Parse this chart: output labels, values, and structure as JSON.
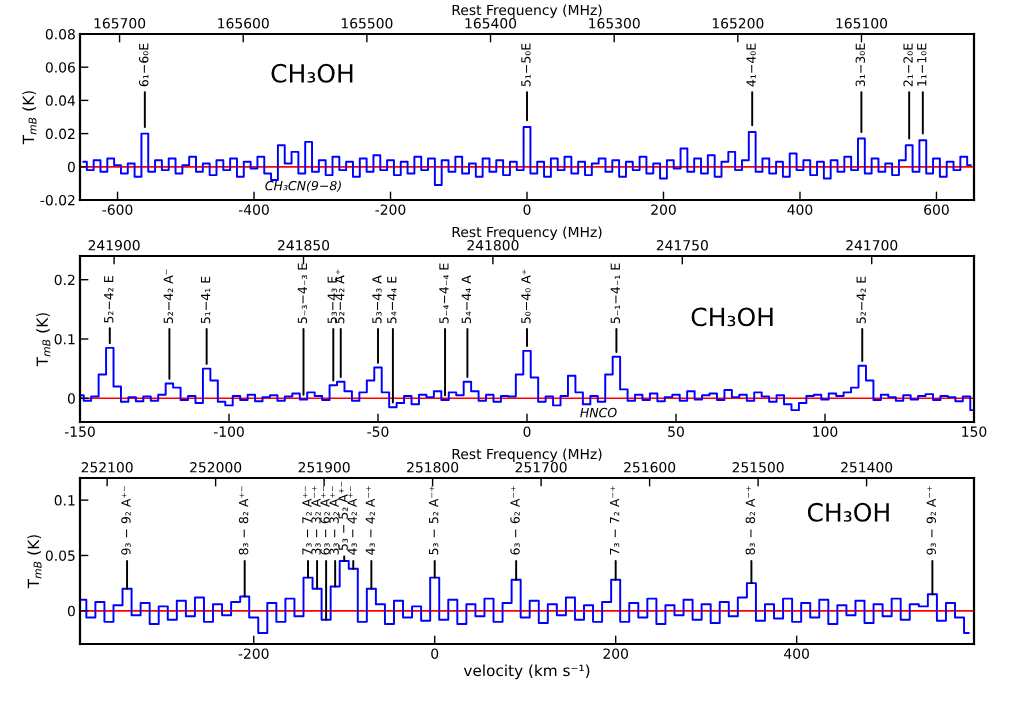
{
  "chart_data": [
    {
      "type": "step",
      "title": "CH₃OH",
      "ylabel": "T$_{mB}$ (K)",
      "x2label": "Rest Frequency (MHz)",
      "x": [
        -650,
        -640,
        -630,
        -620,
        -610,
        -600,
        -590,
        -580,
        -570,
        -560,
        -550,
        -540,
        -530,
        -520,
        -510,
        -500,
        -490,
        -480,
        -470,
        -460,
        -450,
        -440,
        -430,
        -420,
        -410,
        -400,
        -390,
        -380,
        -370,
        -360,
        -350,
        -340,
        -330,
        -320,
        -310,
        -300,
        -290,
        -280,
        -270,
        -260,
        -250,
        -240,
        -230,
        -220,
        -210,
        -200,
        -190,
        -180,
        -170,
        -160,
        -150,
        -140,
        -130,
        -120,
        -110,
        -100,
        -90,
        -80,
        -70,
        -60,
        -50,
        -40,
        -30,
        -20,
        -10,
        0,
        10,
        20,
        30,
        40,
        50,
        60,
        70,
        80,
        90,
        100,
        110,
        120,
        130,
        140,
        150,
        160,
        170,
        180,
        190,
        200,
        210,
        220,
        230,
        240,
        250,
        260,
        270,
        280,
        290,
        300,
        310,
        320,
        330,
        340,
        350,
        360,
        370,
        380,
        390,
        400,
        410,
        420,
        430,
        440,
        450,
        460,
        470,
        480,
        490,
        500,
        510,
        520,
        530,
        540,
        550,
        560,
        570,
        580,
        590,
        600,
        610,
        620,
        630,
        640,
        650
      ],
      "series": [
        {
          "color": "#0000ff",
          "values": [
            0.003,
            -0.002,
            0.004,
            -0.003,
            0.005,
            0.001,
            -0.004,
            0.002,
            -0.006,
            0.02,
            -0.003,
            0.004,
            -0.002,
            0.005,
            -0.004,
            0.001,
            0.006,
            -0.003,
            0.002,
            -0.005,
            0.004,
            -0.002,
            0.005,
            -0.006,
            0.003,
            -0.001,
            0.006,
            -0.004,
            -0.008,
            0.013,
            0.002,
            0.009,
            -0.004,
            0.015,
            -0.003,
            0.004,
            -0.005,
            0.006,
            -0.002,
            0.003,
            -0.006,
            0.005,
            -0.003,
            0.007,
            -0.002,
            0.004,
            -0.005,
            0.003,
            -0.004,
            0.006,
            -0.002,
            0.005,
            -0.011,
            0.004,
            -0.003,
            0.006,
            -0.004,
            0.002,
            -0.006,
            0.005,
            -0.003,
            0.004,
            -0.005,
            0.003,
            -0.002,
            0.024,
            -0.004,
            0.003,
            -0.006,
            0.005,
            -0.002,
            0.006,
            -0.004,
            0.003,
            -0.005,
            0.002,
            0.005,
            -0.003,
            0.004,
            -0.006,
            0.003,
            -0.002,
            0.006,
            -0.004,
            0.002,
            -0.007,
            0.004,
            -0.001,
            0.011,
            -0.003,
            0.005,
            -0.004,
            0.007,
            -0.006,
            0.003,
            0.009,
            -0.002,
            0.004,
            0.021,
            -0.003,
            0.005,
            -0.004,
            0.003,
            -0.006,
            0.008,
            -0.002,
            0.004,
            -0.005,
            0.003,
            -0.007,
            0.004,
            -0.003,
            0.006,
            -0.002,
            0.017,
            -0.004,
            0.005,
            -0.003,
            0.002,
            -0.005,
            0.004,
            0.013,
            -0.003,
            0.016,
            -0.004,
            0.005,
            -0.006,
            0.003,
            -0.002,
            0.006,
            0.001
          ]
        }
      ],
      "xlim": [
        -655,
        655
      ],
      "xticks": [
        -600,
        -400,
        -200,
        0,
        200,
        400,
        600
      ],
      "ylim": [
        -0.02,
        0.08
      ],
      "yticks": [
        -0.02,
        0,
        0.02,
        0.04,
        0.06,
        0.08
      ],
      "x2lim": [
        165732,
        165009
      ],
      "x2ticks": [
        165700,
        165600,
        165500,
        165400,
        165300,
        165200,
        165100
      ],
      "ref_lines": [
        {
          "axis": "y",
          "value": 0,
          "color": "#ff0000"
        }
      ],
      "annotations": [
        {
          "text": "6₁−6₀E",
          "x": -560,
          "y": 0.02
        },
        {
          "text": "5₁−5₀E",
          "x": 0,
          "y": 0.024
        },
        {
          "text": "4₁−4₀E",
          "x": 330,
          "y": 0.021
        },
        {
          "text": "3₁−3₀E",
          "x": 490,
          "y": 0.017
        },
        {
          "text": "2₁−2₀E",
          "x": 560,
          "y": 0.013
        },
        {
          "text": "1₁−1₀E",
          "x": 580,
          "y": 0.016
        },
        "CH₃CN(9−8)"
      ]
    },
    {
      "type": "step",
      "title": "CH₃OH",
      "ylabel": "T$_{mB}$ (K)",
      "x2label": "Rest Frequency (MHz)",
      "x": [
        -150,
        -147.5,
        -145,
        -142.5,
        -140,
        -137.5,
        -135,
        -132.5,
        -130,
        -127.5,
        -125,
        -122.5,
        -120,
        -117.5,
        -115,
        -112.5,
        -110,
        -107.5,
        -105,
        -102.5,
        -100,
        -97.5,
        -95,
        -92.5,
        -90,
        -87.5,
        -85,
        -82.5,
        -80,
        -77.5,
        -75,
        -72.5,
        -70,
        -67.5,
        -65,
        -62.5,
        -60,
        -57.5,
        -55,
        -52.5,
        -50,
        -47.5,
        -45,
        -42.5,
        -40,
        -37.5,
        -35,
        -32.5,
        -30,
        -27.5,
        -25,
        -22.5,
        -20,
        -17.5,
        -15,
        -12.5,
        -10,
        -7.5,
        -5,
        -2.5,
        0,
        2.5,
        5,
        7.5,
        10,
        12.5,
        15,
        17.5,
        20,
        22.5,
        25,
        27.5,
        30,
        32.5,
        35,
        37.5,
        40,
        42.5,
        45,
        47.5,
        50,
        52.5,
        55,
        57.5,
        60,
        62.5,
        65,
        67.5,
        70,
        72.5,
        75,
        77.5,
        80,
        82.5,
        85,
        87.5,
        90,
        92.5,
        95,
        97.5,
        100,
        102.5,
        105,
        107.5,
        110,
        112.5,
        115,
        117.5,
        120,
        122.5,
        125,
        127.5,
        130,
        132.5,
        135,
        137.5,
        140,
        142.5,
        145,
        147.5,
        150
      ],
      "series": [
        {
          "color": "#0000ff",
          "values": [
            0.005,
            -0.004,
            0.003,
            0.04,
            0.085,
            0.02,
            -0.006,
            0.002,
            -0.005,
            0.003,
            -0.004,
            0.006,
            0.025,
            0.018,
            -0.003,
            0.004,
            -0.008,
            0.05,
            0.03,
            -0.006,
            -0.012,
            0.004,
            -0.003,
            0.006,
            -0.005,
            0.002,
            0.005,
            -0.004,
            0.003,
            0.008,
            -0.002,
            0.01,
            0.004,
            -0.003,
            0.022,
            0.028,
            0.012,
            -0.004,
            0.01,
            0.03,
            0.052,
            0.01,
            -0.015,
            -0.008,
            0.004,
            -0.01,
            0.006,
            0.002,
            0.012,
            -0.003,
            0.01,
            0.005,
            0.028,
            0.012,
            -0.004,
            0.006,
            -0.006,
            0.004,
            0.003,
            0.04,
            0.08,
            0.035,
            -0.006,
            0.003,
            -0.012,
            0.004,
            0.038,
            0.01,
            -0.01,
            0.004,
            -0.006,
            0.04,
            0.07,
            0.015,
            -0.004,
            0.006,
            -0.003,
            0.008,
            -0.005,
            0.002,
            0.006,
            -0.004,
            0.012,
            -0.002,
            0.005,
            0.008,
            -0.003,
            0.014,
            0.002,
            0.006,
            -0.004,
            0.01,
            0.003,
            -0.006,
            0.005,
            -0.01,
            -0.02,
            -0.008,
            0.004,
            0.006,
            -0.002,
            0.008,
            0.004,
            0.01,
            0.018,
            0.055,
            0.03,
            -0.003,
            0.006,
            0.002,
            -0.004,
            0.005,
            -0.002,
            0.004,
            0.007,
            -0.003,
            0.004,
            0.002,
            -0.005,
            0.003,
            -0.02
          ]
        }
      ],
      "xlim": [
        -150,
        150
      ],
      "xticks": [
        -150,
        -100,
        -50,
        0,
        50,
        100,
        150
      ],
      "ylim": [
        -0.04,
        0.24
      ],
      "yticks": [
        0,
        0.1,
        0.2
      ],
      "x2lim": [
        241909,
        241673
      ],
      "x2ticks": [
        241900,
        241850,
        241800,
        241750,
        241700
      ],
      "ref_lines": [
        {
          "axis": "y",
          "value": 0,
          "color": "#ff0000"
        }
      ],
      "annotations": [
        {
          "text": "5₂−4₂ E",
          "x": -140,
          "y": 0.085
        },
        {
          "text": "5₂−4₂ A⁻",
          "x": -120,
          "y": 0.025
        },
        {
          "text": "5₁−4₁ E",
          "x": -107.5,
          "y": 0.05
        },
        {
          "text": "5₋₃−4₋₃ E",
          "x": -75,
          "y": -0.002
        },
        {
          "text": "5₃−4₃ E",
          "x": -65,
          "y": 0.022
        },
        {
          "text": "5₂−4₂ A⁺",
          "x": -62.5,
          "y": 0.028
        },
        {
          "text": "5₃−4₃ A",
          "x": -50,
          "y": 0.052
        },
        {
          "text": "5₄−4₄ E",
          "x": -45,
          "y": -0.015
        },
        {
          "text": "5₋₄−4₋₄ E",
          "x": -27.5,
          "y": -0.003
        },
        {
          "text": "5₄−4₄ A",
          "x": -20,
          "y": 0.028
        },
        {
          "text": "5₀−4₀ A⁺",
          "x": 0,
          "y": 0.08
        },
        {
          "text": "5₋₁−4₋₁ E",
          "x": 30,
          "y": 0.07
        },
        {
          "text": "5₂−4₂ E",
          "x": 112.5,
          "y": 0.055
        },
        "HNCO"
      ]
    },
    {
      "type": "step",
      "title": "CH₃OH",
      "ylabel": "T$_{mB}$ (K)",
      "xlabel": "velocity (km s⁻¹)",
      "x2label": "Rest Frequency (MHz)",
      "x": [
        -390,
        -380,
        -370,
        -360,
        -350,
        -340,
        -330,
        -320,
        -310,
        -300,
        -290,
        -280,
        -270,
        -260,
        -250,
        -240,
        -230,
        -220,
        -210,
        -200,
        -190,
        -180,
        -170,
        -160,
        -150,
        -140,
        -130,
        -120,
        -110,
        -100,
        -90,
        -80,
        -70,
        -60,
        -50,
        -40,
        -30,
        -20,
        -10,
        0,
        10,
        20,
        30,
        40,
        50,
        60,
        70,
        80,
        90,
        100,
        110,
        120,
        130,
        140,
        150,
        160,
        170,
        180,
        190,
        200,
        210,
        220,
        230,
        240,
        250,
        260,
        270,
        280,
        290,
        300,
        310,
        320,
        330,
        340,
        350,
        360,
        370,
        380,
        390,
        400,
        410,
        420,
        430,
        440,
        450,
        460,
        470,
        480,
        490,
        500,
        510,
        520,
        530,
        540,
        550,
        560,
        570,
        580,
        590
      ],
      "series": [
        {
          "color": "#0000ff",
          "values": [
            0.01,
            -0.006,
            0.008,
            -0.01,
            0.005,
            0.02,
            -0.004,
            0.007,
            -0.012,
            0.004,
            -0.008,
            0.009,
            -0.005,
            0.012,
            -0.01,
            0.006,
            -0.004,
            0.008,
            0.013,
            -0.006,
            -0.02,
            0.007,
            -0.01,
            0.011,
            -0.005,
            0.03,
            0.02,
            -0.008,
            0.022,
            0.045,
            0.038,
            -0.01,
            0.02,
            0.006,
            -0.012,
            0.009,
            -0.006,
            0.004,
            -0.009,
            0.03,
            -0.008,
            0.01,
            -0.012,
            0.006,
            -0.005,
            0.011,
            -0.01,
            0.007,
            0.028,
            -0.006,
            0.009,
            -0.011,
            0.006,
            -0.004,
            0.012,
            -0.008,
            0.005,
            -0.01,
            0.008,
            0.028,
            -0.01,
            0.007,
            -0.006,
            0.011,
            -0.012,
            0.005,
            -0.004,
            0.01,
            -0.008,
            0.006,
            -0.011,
            0.008,
            -0.005,
            0.012,
            0.025,
            -0.009,
            0.006,
            -0.007,
            0.011,
            -0.01,
            0.007,
            -0.006,
            0.01,
            -0.012,
            0.005,
            -0.004,
            0.009,
            -0.011,
            0.006,
            -0.005,
            0.011,
            -0.008,
            0.006,
            0.004,
            0.015,
            -0.009,
            0.007,
            -0.006,
            -0.02
          ]
        }
      ],
      "xlim": [
        -392,
        596
      ],
      "xticks": [
        -200,
        0,
        200,
        400
      ],
      "ylim": [
        -0.03,
        0.12
      ],
      "yticks": [
        0,
        0.05,
        0.1
      ],
      "x2lim": [
        252125,
        251301
      ],
      "x2ticks": [
        252100,
        252000,
        251900,
        251800,
        251700,
        251600,
        251500,
        251400
      ],
      "ref_lines": [
        {
          "axis": "y",
          "value": 0,
          "color": "#ff0000"
        }
      ],
      "annotations": [
        {
          "text": "9₃ − 9₂ A⁺⁻",
          "x": -340,
          "y": 0.02
        },
        {
          "text": "8₃ − 8₂ A⁺⁻",
          "x": -210,
          "y": 0.013
        },
        {
          "text": "7₃ − 7₂ A⁺⁻",
          "x": -140,
          "y": 0.03
        },
        {
          "text": "3₃ − 3₂ A⁻⁺",
          "x": -130,
          "y": 0.02
        },
        {
          "text": "6₃ − 6₂ A⁺⁻",
          "x": -120,
          "y": -0.008
        },
        {
          "text": "3₃ − 3₂ A⁺⁻",
          "x": -110,
          "y": 0.022
        },
        {
          "text": "5₃ − 5₂ A⁺⁻",
          "x": -100,
          "y": 0.045
        },
        {
          "text": "4₃ − 4₂ A⁺⁻",
          "x": -90,
          "y": 0.038
        },
        {
          "text": "4₃ − 4₂ A⁻⁺",
          "x": -70,
          "y": 0.02
        },
        {
          "text": "5₃ − 5₂ A⁻⁺",
          "x": 0,
          "y": 0.03
        },
        {
          "text": "6₃ − 6₂ A⁻⁺",
          "x": 90,
          "y": 0.028
        },
        {
          "text": "7₃ − 7₂ A⁻⁺",
          "x": 200,
          "y": 0.028
        },
        {
          "text": "8₃ − 8₂ A⁻⁺",
          "x": 350,
          "y": 0.025
        },
        {
          "text": "9₃ − 9₂ A⁻⁺",
          "x": 550,
          "y": 0.015
        }
      ]
    }
  ]
}
